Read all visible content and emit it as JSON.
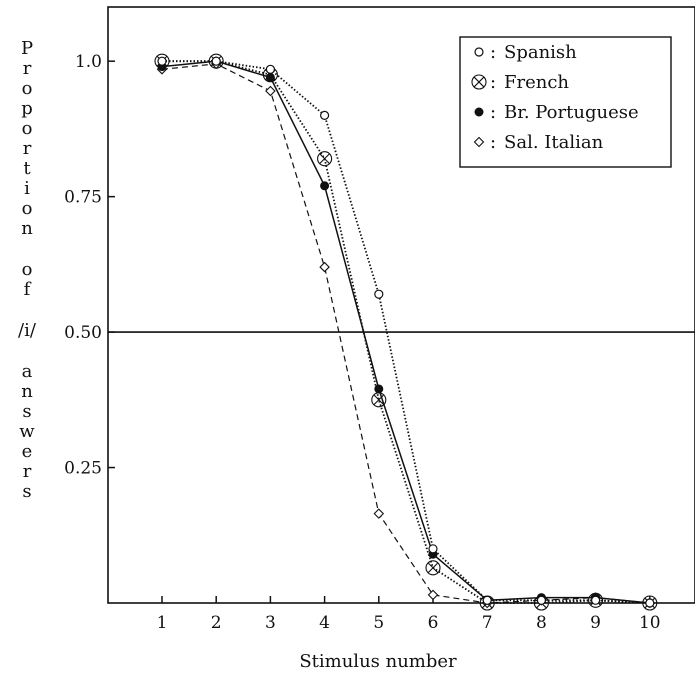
{
  "chart_data": {
    "type": "line",
    "xlabel": "Stimulus number",
    "ylabel_lines": [
      "P",
      "r",
      "o",
      "p",
      "o",
      "r",
      "t",
      "i",
      "o",
      "n",
      "",
      "o",
      "f",
      "",
      "/i/",
      "",
      "a",
      "n",
      "s",
      "w",
      "e",
      "r",
      "s"
    ],
    "x": [
      1,
      2,
      3,
      4,
      5,
      6,
      7,
      8,
      9,
      10
    ],
    "x_tick_labels": [
      "1",
      "2",
      "3",
      "4",
      "5",
      "6",
      "7",
      "8",
      "9",
      "10"
    ],
    "xlim": [
      0,
      10.85
    ],
    "ylim": [
      0,
      1.1
    ],
    "y_ticks": [
      0.25,
      0.5,
      0.75,
      1.0
    ],
    "y_tick_labels": [
      "0.25",
      "0.50",
      "0.75",
      "1.0"
    ],
    "reference_line": 0.5,
    "legend_position": "top-right",
    "series": [
      {
        "name": "Spanish",
        "marker": "open-circle",
        "line": "dotted",
        "values": [
          1.0,
          1.0,
          0.985,
          0.9,
          0.57,
          0.1,
          0.005,
          0.005,
          0.005,
          0.0
        ]
      },
      {
        "name": "French",
        "marker": "circle-x",
        "line": "dotted",
        "values": [
          1.0,
          1.0,
          0.975,
          0.82,
          0.375,
          0.065,
          0.0,
          0.0,
          0.005,
          0.0
        ]
      },
      {
        "name": "Br. Portuguese",
        "marker": "filled-circle",
        "line": "solid",
        "values": [
          0.99,
          1.0,
          0.97,
          0.77,
          0.395,
          0.09,
          0.005,
          0.01,
          0.01,
          0.0
        ]
      },
      {
        "name": "Sal. Italian",
        "marker": "open-diamond",
        "line": "dashed",
        "values": [
          0.985,
          0.995,
          0.945,
          0.62,
          0.165,
          0.015,
          0.0,
          0.005,
          0.01,
          0.0
        ]
      }
    ]
  },
  "legend_separator": ":"
}
